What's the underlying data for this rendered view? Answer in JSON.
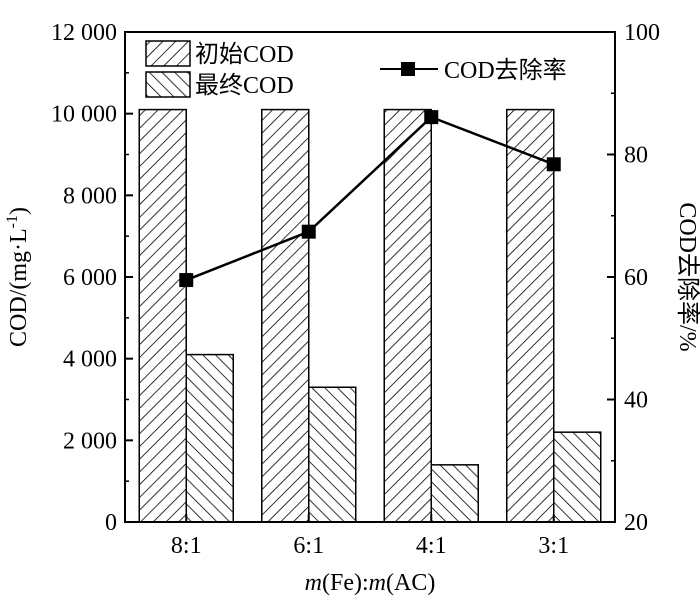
{
  "chart_data": {
    "type": "bar",
    "categories": [
      "8:1",
      "6:1",
      "4:1",
      "3:1"
    ],
    "xlabel_parts": [
      {
        "text": "m",
        "italic": true
      },
      {
        "text": "(Fe):",
        "italic": false
      },
      {
        "text": "m",
        "italic": true
      },
      {
        "text": "(AC)",
        "italic": false
      }
    ],
    "ylabel_left": {
      "main": "COD/(mg·L",
      "sup": "-1",
      "end": ")"
    },
    "ylabel_right": "COD去除率/%",
    "ylim_left": [
      0,
      12000
    ],
    "ylim_right": [
      20,
      100
    ],
    "yticks_left": [
      0,
      2000,
      4000,
      6000,
      8000,
      10000,
      12000
    ],
    "ytick_labels_left": [
      "0",
      "2 000",
      "4 000",
      "6 000",
      "8 000",
      "10 000",
      "12 000"
    ],
    "yticks_right": [
      20,
      40,
      60,
      80,
      100
    ],
    "ytick_labels_right": [
      "20",
      "40",
      "60",
      "80",
      "100"
    ],
    "series": [
      {
        "name": "初始COD",
        "kind": "bar",
        "axis": "left",
        "hatch": "forward",
        "values": [
          10100,
          10100,
          10100,
          10100
        ]
      },
      {
        "name": "最终COD",
        "kind": "bar",
        "axis": "left",
        "hatch": "backward",
        "values": [
          4100,
          3300,
          1400,
          2200
        ]
      },
      {
        "name": "COD去除率",
        "kind": "line",
        "axis": "right",
        "marker": "square",
        "values": [
          59.5,
          67.4,
          86.1,
          78.4
        ]
      }
    ],
    "legend": [
      "初始COD",
      "最终COD",
      "COD去除率"
    ],
    "grid": false,
    "colors": {
      "stroke": "#000000",
      "fill": "#ffffff"
    }
  }
}
